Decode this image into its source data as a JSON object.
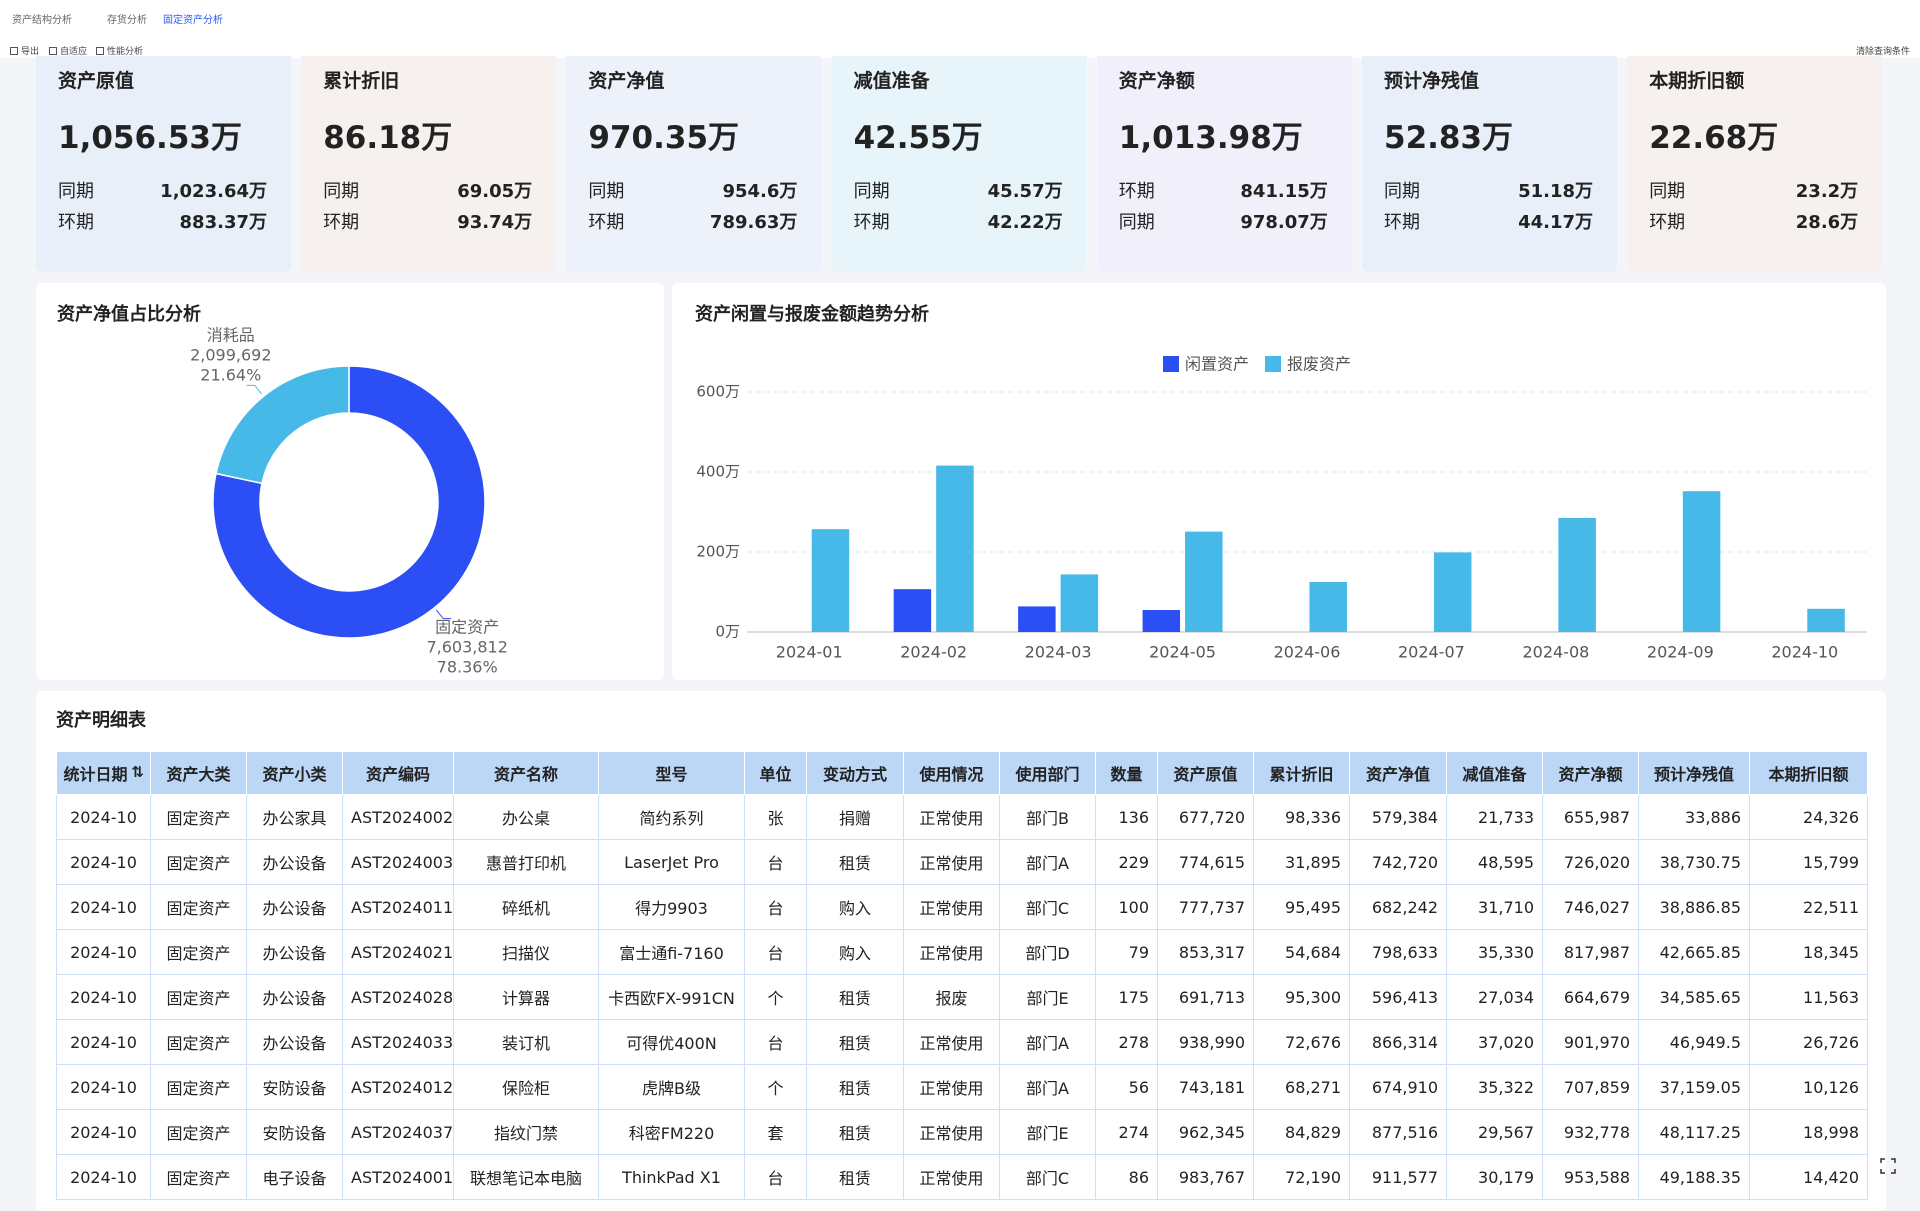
{
  "tabs": [
    "资产结构分析",
    "存货分析",
    "固定资产分析"
  ],
  "toolbar": {
    "left": [
      "导出",
      "自适应",
      "性能分析"
    ],
    "right": "清除查询条件"
  },
  "kpis": [
    {
      "title": "资产原值",
      "value": "1,056.53万",
      "rows": [
        {
          "label": "同期",
          "value": "1,023.64万"
        },
        {
          "label": "环期",
          "value": "883.37万"
        }
      ]
    },
    {
      "title": "累计折旧",
      "value": "86.18万",
      "rows": [
        {
          "label": "同期",
          "value": "69.05万"
        },
        {
          "label": "环期",
          "value": "93.74万"
        }
      ]
    },
    {
      "title": "资产净值",
      "value": "970.35万",
      "rows": [
        {
          "label": "同期",
          "value": "954.6万"
        },
        {
          "label": "环期",
          "value": "789.63万"
        }
      ]
    },
    {
      "title": "减值准备",
      "value": "42.55万",
      "rows": [
        {
          "label": "同期",
          "value": "45.57万"
        },
        {
          "label": "环期",
          "value": "42.22万"
        }
      ]
    },
    {
      "title": "资产净额",
      "value": "1,013.98万",
      "rows": [
        {
          "label": "环期",
          "value": "841.15万"
        },
        {
          "label": "同期",
          "value": "978.07万"
        }
      ]
    },
    {
      "title": "预计净残值",
      "value": "52.83万",
      "rows": [
        {
          "label": "同期",
          "value": "51.18万"
        },
        {
          "label": "环期",
          "value": "44.17万"
        }
      ]
    },
    {
      "title": "本期折旧额",
      "value": "22.68万",
      "rows": [
        {
          "label": "同期",
          "value": "23.2万"
        },
        {
          "label": "环期",
          "value": "28.6万"
        }
      ]
    }
  ],
  "chart_data": [
    {
      "type": "pie",
      "title": "资产净值占比分析",
      "categories": [
        "固定资产",
        "消耗品"
      ],
      "values": [
        7603812,
        2099692
      ],
      "value_labels": [
        "7,603,812",
        "2,099,692"
      ],
      "percent_labels": [
        "78.36%",
        "21.64%"
      ],
      "colors": [
        "#2b4ff5",
        "#47b9e9"
      ],
      "donut": true
    },
    {
      "type": "bar",
      "title": "资产闲置与报废金额趋势分析",
      "categories": [
        "2024-01",
        "2024-02",
        "2024-03",
        "2024-05",
        "2024-06",
        "2024-07",
        "2024-08",
        "2024-09",
        "2024-10"
      ],
      "series": [
        {
          "name": "闲置资产",
          "color": "#2b4ff5",
          "values": [
            null,
            107,
            64,
            55,
            null,
            null,
            null,
            null,
            null
          ]
        },
        {
          "name": "报废资产",
          "color": "#47b9e9",
          "values": [
            257,
            416,
            144,
            251,
            125,
            199,
            285,
            352,
            58
          ]
        }
      ],
      "ylim": [
        0,
        600
      ],
      "yticks": [
        {
          "value": 0,
          "label": "0万"
        },
        {
          "value": 200,
          "label": "200万"
        },
        {
          "value": 400,
          "label": "400万"
        },
        {
          "value": 600,
          "label": "600万"
        }
      ],
      "grid": true,
      "legend": "top"
    }
  ],
  "table": {
    "title": "资产明细表",
    "columns": [
      "统计日期",
      "资产大类",
      "资产小类",
      "资产编码",
      "资产名称",
      "型号",
      "单位",
      "变动方式",
      "使用情况",
      "使用部门",
      "数量",
      "资产原值",
      "累计折旧",
      "资产净值",
      "减值准备",
      "资产净额",
      "预计净残值",
      "本期折旧额"
    ],
    "rows": [
      [
        "2024-10",
        "固定资产",
        "办公家具",
        "AST2024002",
        "办公桌",
        "简约系列",
        "张",
        "捐赠",
        "正常使用",
        "部门B",
        "136",
        "677,720",
        "98,336",
        "579,384",
        "21,733",
        "655,987",
        "33,886",
        "24,326"
      ],
      [
        "2024-10",
        "固定资产",
        "办公设备",
        "AST2024003",
        "惠普打印机",
        "LaserJet Pro",
        "台",
        "租赁",
        "正常使用",
        "部门A",
        "229",
        "774,615",
        "31,895",
        "742,720",
        "48,595",
        "726,020",
        "38,730.75",
        "15,799"
      ],
      [
        "2024-10",
        "固定资产",
        "办公设备",
        "AST2024011",
        "碎纸机",
        "得力9903",
        "台",
        "购入",
        "正常使用",
        "部门C",
        "100",
        "777,737",
        "95,495",
        "682,242",
        "31,710",
        "746,027",
        "38,886.85",
        "22,511"
      ],
      [
        "2024-10",
        "固定资产",
        "办公设备",
        "AST2024021",
        "扫描仪",
        "富士通fi-7160",
        "台",
        "购入",
        "正常使用",
        "部门D",
        "79",
        "853,317",
        "54,684",
        "798,633",
        "35,330",
        "817,987",
        "42,665.85",
        "18,345"
      ],
      [
        "2024-10",
        "固定资产",
        "办公设备",
        "AST2024028",
        "计算器",
        "卡西欧FX-991CN",
        "个",
        "租赁",
        "报废",
        "部门E",
        "175",
        "691,713",
        "95,300",
        "596,413",
        "27,034",
        "664,679",
        "34,585.65",
        "11,563"
      ],
      [
        "2024-10",
        "固定资产",
        "办公设备",
        "AST2024033",
        "装订机",
        "可得优400N",
        "台",
        "租赁",
        "正常使用",
        "部门A",
        "278",
        "938,990",
        "72,676",
        "866,314",
        "37,020",
        "901,970",
        "46,949.5",
        "26,726"
      ],
      [
        "2024-10",
        "固定资产",
        "安防设备",
        "AST2024012",
        "保险柜",
        "虎牌B级",
        "个",
        "租赁",
        "正常使用",
        "部门A",
        "56",
        "743,181",
        "68,271",
        "674,910",
        "35,322",
        "707,859",
        "37,159.05",
        "10,126"
      ],
      [
        "2024-10",
        "固定资产",
        "安防设备",
        "AST2024037",
        "指纹门禁",
        "科密FM220",
        "套",
        "租赁",
        "正常使用",
        "部门E",
        "274",
        "962,345",
        "84,829",
        "877,516",
        "29,567",
        "932,778",
        "48,117.25",
        "18,998"
      ],
      [
        "2024-10",
        "固定资产",
        "电子设备",
        "AST2024001",
        "联想笔记本电脑",
        "ThinkPad X1",
        "台",
        "租赁",
        "正常使用",
        "部门C",
        "86",
        "983,767",
        "72,190",
        "911,577",
        "30,179",
        "953,588",
        "49,188.35",
        "14,420"
      ]
    ]
  }
}
